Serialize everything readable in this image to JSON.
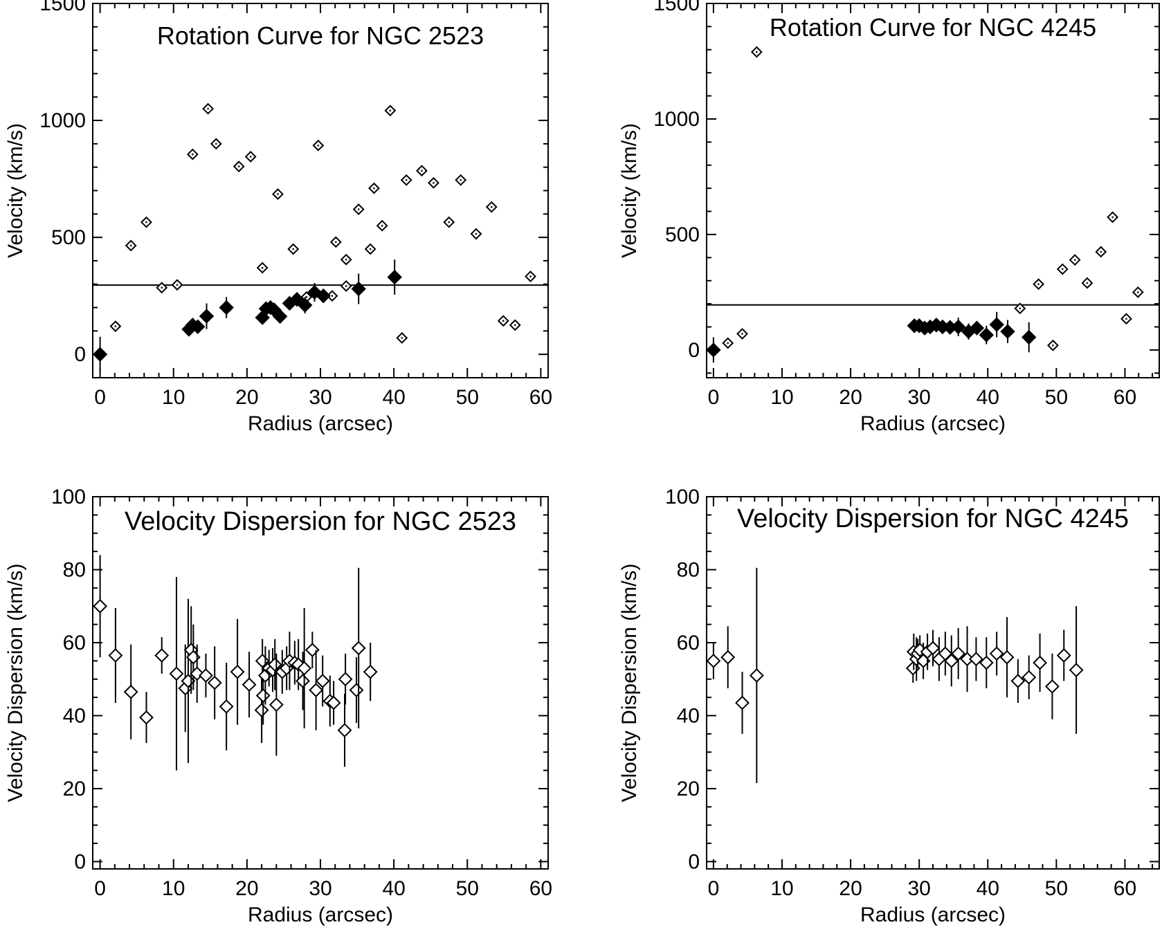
{
  "colors": {
    "ink": "#000000",
    "background": "#ffffff"
  },
  "chart_data": [
    {
      "type": "scatter",
      "title": "Rotation Curve for NGC 2523",
      "xlabel": "Radius (arcsec)",
      "ylabel": "Velocity (km/s)",
      "xlim": [
        -1,
        61
      ],
      "ylim": [
        -100,
        1500
      ],
      "xticks": [
        "0",
        "10",
        "20",
        "30",
        "40",
        "50",
        "60"
      ],
      "yticks": [
        "0",
        "500",
        "1000",
        "1500"
      ],
      "hline": 296,
      "series": [
        {
          "name": "open",
          "marker": "open-diamond",
          "points": [
            [
              2.1,
              120
            ],
            [
              4.2,
              465
            ],
            [
              6.3,
              565
            ],
            [
              8.4,
              285
            ],
            [
              10.5,
              297
            ],
            [
              12.6,
              855
            ],
            [
              14.7,
              1050
            ],
            [
              15.8,
              900
            ],
            [
              18.9,
              803
            ],
            [
              20.5,
              845
            ],
            [
              22.1,
              370
            ],
            [
              24.2,
              685
            ],
            [
              26.3,
              450
            ],
            [
              28.1,
              245
            ],
            [
              29.7,
              893
            ],
            [
              31.6,
              250
            ],
            [
              32.1,
              480
            ],
            [
              33.5,
              405
            ],
            [
              33.5,
              292
            ],
            [
              35.2,
              620
            ],
            [
              36.8,
              450
            ],
            [
              37.3,
              710
            ],
            [
              38.4,
              550
            ],
            [
              39.5,
              1042
            ],
            [
              41.1,
              70
            ],
            [
              41.7,
              745
            ],
            [
              43.8,
              785
            ],
            [
              45.4,
              733
            ],
            [
              47.5,
              565
            ],
            [
              49.1,
              745
            ],
            [
              51.2,
              515
            ],
            [
              53.3,
              630
            ],
            [
              54.9,
              143
            ],
            [
              56.5,
              125
            ],
            [
              58.6,
              333
            ]
          ]
        },
        {
          "name": "filled",
          "marker": "filled-diamond",
          "points": [
            {
              "x": 0,
              "y": 0,
              "err": 75
            },
            {
              "x": 12.1,
              "y": 107,
              "err": 20
            },
            {
              "x": 12.6,
              "y": 125,
              "err": 30
            },
            {
              "x": 13.3,
              "y": 118,
              "err": 20
            },
            {
              "x": 14.5,
              "y": 163,
              "err": 55
            },
            {
              "x": 17.2,
              "y": 200,
              "err": 45
            },
            {
              "x": 22.1,
              "y": 157,
              "err": 25
            },
            {
              "x": 22.6,
              "y": 195,
              "err": 30
            },
            {
              "x": 23.2,
              "y": 200,
              "err": 25
            },
            {
              "x": 23.7,
              "y": 190,
              "err": 20
            },
            {
              "x": 24.5,
              "y": 162,
              "err": 25
            },
            {
              "x": 25.8,
              "y": 218,
              "err": 30
            },
            {
              "x": 26.8,
              "y": 235,
              "err": 30
            },
            {
              "x": 27.9,
              "y": 210,
              "err": 35
            },
            {
              "x": 29.2,
              "y": 265,
              "err": 40
            },
            {
              "x": 30.4,
              "y": 250,
              "err": 30
            },
            {
              "x": 35.2,
              "y": 280,
              "err": 65
            },
            {
              "x": 40.1,
              "y": 330,
              "err": 75
            }
          ]
        }
      ]
    },
    {
      "type": "scatter",
      "title": "Rotation Curve for NGC 4245",
      "xlabel": "Radius (arcsec)",
      "ylabel": "Velocity (km/s)",
      "xlim": [
        -1,
        65
      ],
      "ylim": [
        -120,
        1500
      ],
      "xticks": [
        "0",
        "10",
        "20",
        "30",
        "40",
        "50",
        "60"
      ],
      "yticks": [
        "0",
        "500",
        "1000",
        "1500"
      ],
      "hline": 195,
      "series": [
        {
          "name": "open",
          "marker": "open-diamond",
          "points": [
            [
              2.1,
              30
            ],
            [
              4.2,
              70
            ],
            [
              6.3,
              1290
            ],
            [
              44.7,
              180
            ],
            [
              47.4,
              285
            ],
            [
              49.5,
              20
            ],
            [
              50.9,
              350
            ],
            [
              52.7,
              390
            ],
            [
              54.5,
              290
            ],
            [
              56.5,
              425
            ],
            [
              58.2,
              575
            ],
            [
              60.2,
              135
            ],
            [
              61.9,
              250
            ]
          ]
        },
        {
          "name": "filled",
          "marker": "filled-diamond",
          "points": [
            {
              "x": 0,
              "y": 0,
              "err": 55
            },
            {
              "x": 29.3,
              "y": 105,
              "err": 20
            },
            {
              "x": 30.0,
              "y": 105,
              "err": 25
            },
            {
              "x": 30.8,
              "y": 95,
              "err": 20
            },
            {
              "x": 31.6,
              "y": 100,
              "err": 25
            },
            {
              "x": 32.5,
              "y": 108,
              "err": 25
            },
            {
              "x": 33.4,
              "y": 100,
              "err": 30
            },
            {
              "x": 34.5,
              "y": 98,
              "err": 30
            },
            {
              "x": 35.7,
              "y": 100,
              "err": 40
            },
            {
              "x": 37.2,
              "y": 80,
              "err": 35
            },
            {
              "x": 38.4,
              "y": 95,
              "err": 30
            },
            {
              "x": 39.8,
              "y": 65,
              "err": 40
            },
            {
              "x": 41.3,
              "y": 110,
              "err": 55
            },
            {
              "x": 42.9,
              "y": 80,
              "err": 50
            },
            {
              "x": 46.0,
              "y": 55,
              "err": 65
            }
          ]
        }
      ]
    },
    {
      "type": "scatter",
      "title": "Velocity Dispersion for NGC 2523",
      "xlabel": "Radius (arcsec)",
      "ylabel": "Velocity Dispersion (km/s)",
      "xlim": [
        -1,
        61
      ],
      "ylim": [
        -2,
        100
      ],
      "xticks": [
        "0",
        "10",
        "20",
        "30",
        "40",
        "50",
        "60"
      ],
      "yticks": [
        "0",
        "20",
        "40",
        "60",
        "80",
        "100"
      ],
      "series": [
        {
          "name": "dispersion",
          "marker": "open-diamond",
          "points": [
            {
              "x": 0,
              "y": 70,
              "err": 14
            },
            {
              "x": 2.1,
              "y": 56.5,
              "err": 13
            },
            {
              "x": 4.2,
              "y": 46.5,
              "err": 13
            },
            {
              "x": 6.3,
              "y": 39.5,
              "err": 7
            },
            {
              "x": 8.4,
              "y": 56.5,
              "err": 5
            },
            {
              "x": 10.4,
              "y": 51.5,
              "err": 26.5
            },
            {
              "x": 11.6,
              "y": 47.5,
              "err": 12
            },
            {
              "x": 12.0,
              "y": 49.5,
              "err": 22.5
            },
            {
              "x": 12.4,
              "y": 58,
              "err": 12
            },
            {
              "x": 12.7,
              "y": 56,
              "err": 9
            },
            {
              "x": 13.2,
              "y": 51.5,
              "err": 8
            },
            {
              "x": 14.4,
              "y": 51,
              "err": 6
            },
            {
              "x": 15.6,
              "y": 49,
              "err": 10
            },
            {
              "x": 17.2,
              "y": 42.5,
              "err": 12
            },
            {
              "x": 18.7,
              "y": 52,
              "err": 14.5
            },
            {
              "x": 20.3,
              "y": 48.5,
              "err": 9
            },
            {
              "x": 22.0,
              "y": 41.5,
              "err": 9
            },
            {
              "x": 22.1,
              "y": 55,
              "err": 6
            },
            {
              "x": 22.2,
              "y": 45.5,
              "err": 8
            },
            {
              "x": 22.5,
              "y": 51,
              "err": 8
            },
            {
              "x": 23.0,
              "y": 53,
              "err": 5
            },
            {
              "x": 23.5,
              "y": 52.5,
              "err": 6
            },
            {
              "x": 23.8,
              "y": 54,
              "err": 7
            },
            {
              "x": 24.0,
              "y": 43,
              "err": 14
            },
            {
              "x": 24.8,
              "y": 52,
              "err": 6
            },
            {
              "x": 25.4,
              "y": 53,
              "err": 6
            },
            {
              "x": 25.8,
              "y": 55,
              "err": 8
            },
            {
              "x": 26.5,
              "y": 54.5,
              "err": 6
            },
            {
              "x": 27.0,
              "y": 54,
              "err": 7
            },
            {
              "x": 27.6,
              "y": 49.5,
              "err": 8
            },
            {
              "x": 27.8,
              "y": 53,
              "err": 16.5
            },
            {
              "x": 28.9,
              "y": 58,
              "err": 5
            },
            {
              "x": 29.4,
              "y": 47,
              "err": 11
            },
            {
              "x": 30.3,
              "y": 49.5,
              "err": 7
            },
            {
              "x": 31.3,
              "y": 44,
              "err": 7
            },
            {
              "x": 31.8,
              "y": 43.5,
              "err": 6
            },
            {
              "x": 33.3,
              "y": 36,
              "err": 10
            },
            {
              "x": 33.4,
              "y": 50,
              "err": 7
            },
            {
              "x": 34.9,
              "y": 47,
              "err": 9
            },
            {
              "x": 35.2,
              "y": 58.5,
              "err": 22
            },
            {
              "x": 36.8,
              "y": 52,
              "err": 8
            }
          ]
        }
      ]
    },
    {
      "type": "scatter",
      "title": "Velocity Dispersion for NGC 4245",
      "xlabel": "Radius (arcsec)",
      "ylabel": "Velocity Dispersion (km/s)",
      "xlim": [
        -1,
        65
      ],
      "ylim": [
        -2,
        100
      ],
      "xticks": [
        "0",
        "10",
        "20",
        "30",
        "40",
        "50",
        "60"
      ],
      "yticks": [
        "0",
        "20",
        "40",
        "60",
        "80",
        "100"
      ],
      "series": [
        {
          "name": "dispersion",
          "marker": "open-diamond",
          "points": [
            {
              "x": 0,
              "y": 55,
              "err": 5
            },
            {
              "x": 2.1,
              "y": 56,
              "err": 8.5
            },
            {
              "x": 4.2,
              "y": 43.5,
              "err": 8.5
            },
            {
              "x": 6.3,
              "y": 51,
              "err": 29.5
            },
            {
              "x": 29.1,
              "y": 53,
              "err": 4
            },
            {
              "x": 29.2,
              "y": 57.5,
              "err": 5
            },
            {
              "x": 29.6,
              "y": 55.5,
              "err": 6
            },
            {
              "x": 29.8,
              "y": 57,
              "err": 4
            },
            {
              "x": 30.1,
              "y": 58,
              "err": 4
            },
            {
              "x": 30.6,
              "y": 55,
              "err": 5
            },
            {
              "x": 31.2,
              "y": 57.5,
              "err": 5
            },
            {
              "x": 32.0,
              "y": 58.5,
              "err": 5
            },
            {
              "x": 32.9,
              "y": 55.5,
              "err": 6
            },
            {
              "x": 33.8,
              "y": 57,
              "err": 6
            },
            {
              "x": 34.7,
              "y": 55,
              "err": 7
            },
            {
              "x": 35.7,
              "y": 57,
              "err": 7
            },
            {
              "x": 37.0,
              "y": 55.5,
              "err": 9
            },
            {
              "x": 38.3,
              "y": 55.5,
              "err": 6
            },
            {
              "x": 39.8,
              "y": 54.5,
              "err": 7
            },
            {
              "x": 41.3,
              "y": 57,
              "err": 6
            },
            {
              "x": 42.8,
              "y": 56,
              "err": 11
            },
            {
              "x": 44.4,
              "y": 49.5,
              "err": 6
            },
            {
              "x": 46.0,
              "y": 50.5,
              "err": 6
            },
            {
              "x": 47.6,
              "y": 54.5,
              "err": 8
            },
            {
              "x": 49.4,
              "y": 48,
              "err": 9
            },
            {
              "x": 51.1,
              "y": 56.5,
              "err": 7
            },
            {
              "x": 52.9,
              "y": 52.5,
              "err": 17.5
            }
          ]
        }
      ]
    }
  ]
}
